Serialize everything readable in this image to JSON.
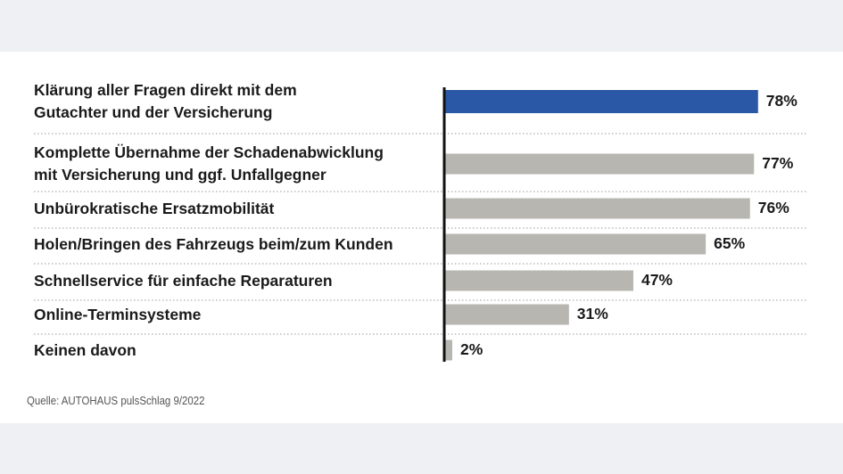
{
  "chart_data": {
    "type": "bar",
    "orientation": "horizontal",
    "categories": [
      "Klärung aller Fragen direkt mit dem\nGutachter und der Versicherung",
      "Komplette Übernahme der Schadenabwicklung\nmit Versicherung und ggf. Unfallgegner",
      "Unbürokratische Ersatzmobilität",
      "Holen/Bringen des Fahrzeugs beim/zum Kunden",
      "Schnellservice für einfache Reparaturen",
      "Online-Terminsysteme",
      "Keinen davon"
    ],
    "values": [
      78,
      77,
      76,
      65,
      47,
      31,
      2
    ],
    "value_labels": [
      "78%",
      "77%",
      "76%",
      "65%",
      "47%",
      "31%",
      "2%"
    ],
    "colors": [
      "#2b58a6",
      "#b8b6b0",
      "#b8b6b0",
      "#b8b6b0",
      "#b8b6b0",
      "#b8b6b0",
      "#b8b6b0"
    ],
    "source": "Quelle: AUTOHAUS pulsSchlag 9/2022"
  }
}
